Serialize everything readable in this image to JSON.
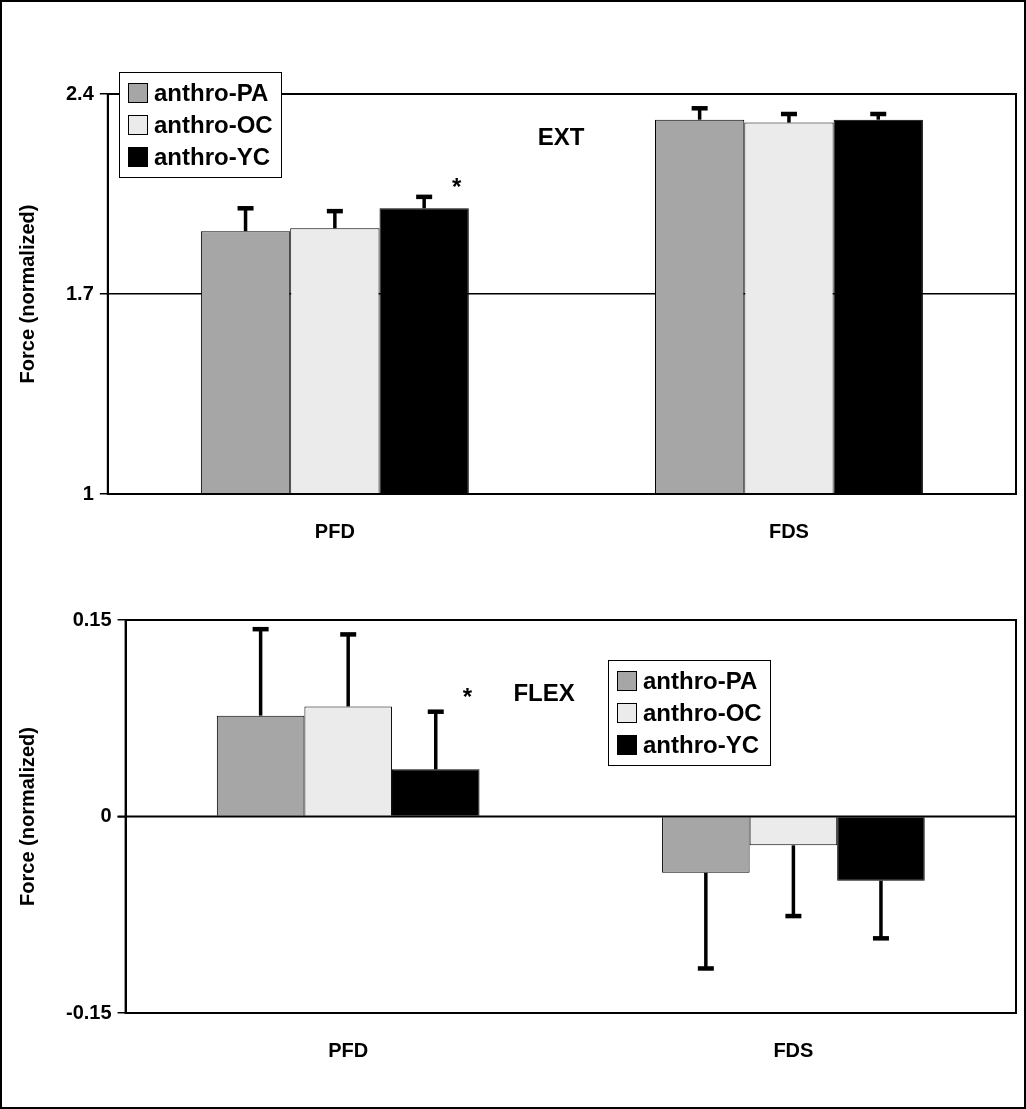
{
  "chart_data": [
    {
      "type": "bar",
      "categories": [
        "PFD",
        "FDS"
      ],
      "ylabel": "Force (normalized)",
      "ylim": [
        1,
        2.4
      ],
      "yticks": [
        1,
        1.7,
        2.4
      ],
      "grid": "y",
      "legend": "top left",
      "annotations": [
        "EXT",
        "*"
      ],
      "series": [
        {
          "name": "anthro-PA",
          "color": "#a6a6a6",
          "values": [
            1.92,
            2.31
          ],
          "errors": [
            [
              1.92,
              2.0
            ],
            [
              2.31,
              2.35
            ]
          ]
        },
        {
          "name": "anthro-OC",
          "color": "#ebebeb",
          "values": [
            1.93,
            2.3
          ],
          "errors": [
            [
              1.93,
              1.99
            ],
            [
              2.3,
              2.33
            ]
          ]
        },
        {
          "name": "anthro-YC",
          "color": "#000000",
          "values": [
            2.0,
            2.31
          ],
          "errors": [
            [
              2.0,
              2.04
            ],
            [
              2.31,
              2.33
            ]
          ]
        }
      ]
    },
    {
      "type": "bar",
      "categories": [
        "PFD",
        "FDS"
      ],
      "ylabel": "Force (normalized)",
      "ylim": [
        -0.15,
        0.15
      ],
      "yticks": [
        -0.15,
        0,
        0.15
      ],
      "legend": "top right",
      "annotations": [
        "*",
        "FLEX"
      ],
      "series": [
        {
          "name": "anthro-PA",
          "color": "#a6a6a6",
          "values": [
            0.077,
            -0.043
          ],
          "errors": [
            [
              0.077,
              0.143
            ],
            [
              -0.116,
              -0.043
            ]
          ]
        },
        {
          "name": "anthro-OC",
          "color": "#ebebeb",
          "values": [
            0.084,
            -0.022
          ],
          "errors": [
            [
              0.084,
              0.139
            ],
            [
              -0.076,
              -0.022
            ]
          ]
        },
        {
          "name": "anthro-YC",
          "color": "#000000",
          "values": [
            0.036,
            -0.049
          ],
          "errors": [
            [
              0.036,
              0.08
            ],
            [
              -0.093,
              -0.049
            ]
          ]
        }
      ]
    }
  ]
}
